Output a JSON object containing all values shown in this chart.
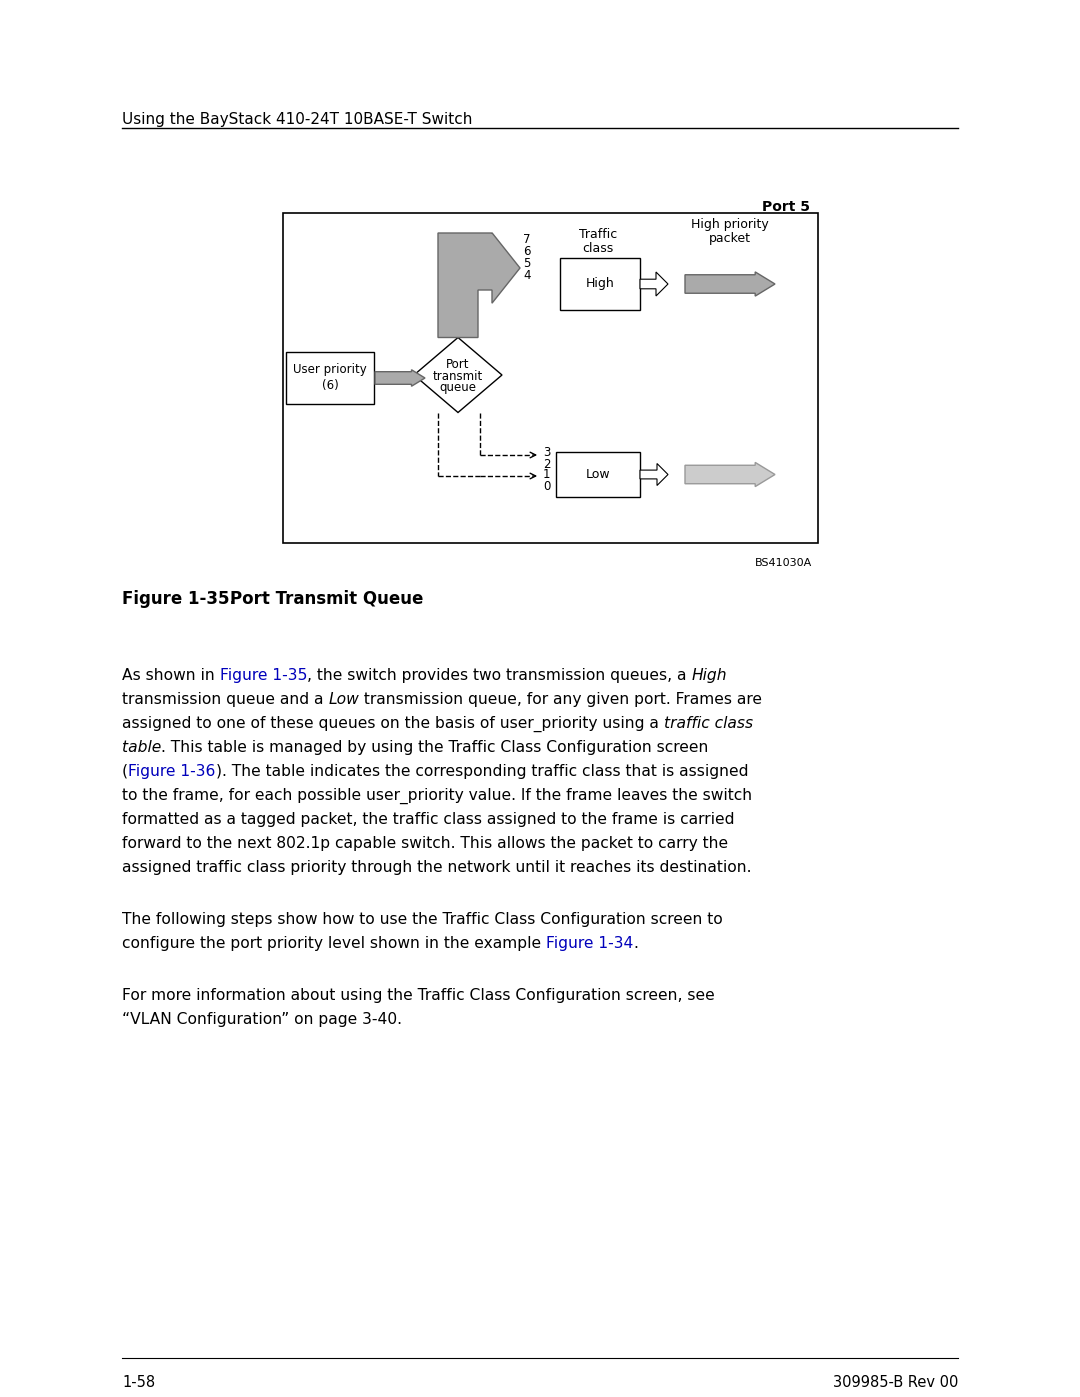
{
  "page_header": "Using the BayStack 410-24T 10BASE-T Switch",
  "port_label": "Port 5",
  "figure_label": "Figure 1-35.",
  "figure_title": "    Port Transmit Queue",
  "figure_code": "BS41030A",
  "footer_left": "1-58",
  "footer_right": "309985-B Rev 00",
  "link_color": "#0000bb",
  "text_color": "#000000",
  "background_color": "#ffffff",
  "gray_arrow": "#aaaaaa",
  "gray_arrow_edge": "#666666",
  "light_gray_arrow": "#cccccc",
  "light_gray_edge": "#999999"
}
